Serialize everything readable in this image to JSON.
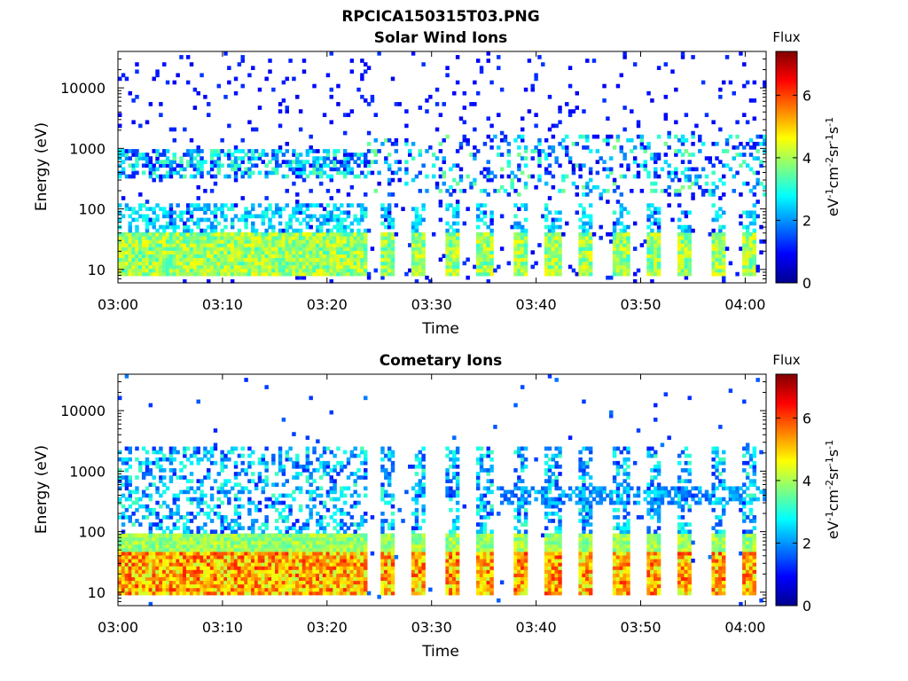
{
  "figure_title": "RPCICA150315T03.PNG",
  "chart_data": [
    {
      "type": "heatmap",
      "title": "Solar Wind Ions",
      "xlabel": "Time",
      "ylabel": "Energy (eV)",
      "x_ticks": [
        "03:00",
        "03:10",
        "03:20",
        "03:30",
        "03:40",
        "03:50",
        "04:00"
      ],
      "x_range_minutes": [
        0,
        62
      ],
      "y_scale": "log",
      "y_ticks": [
        "10",
        "100",
        "1000",
        "10000"
      ],
      "y_range": [
        6,
        40000
      ],
      "colorbar": {
        "label": "eV⁻¹cm⁻²sr⁻¹s⁻¹",
        "header": "Flux",
        "ticks": [
          "0",
          "2",
          "4",
          "6"
        ],
        "range": [
          0,
          7.4
        ]
      },
      "description_of_structure": "Dense low-energy (10-40 eV) flux blocks 03:00-03:23; intermittent columns after 03:25; scattered blue speckles up to ~40 keV"
    },
    {
      "type": "heatmap",
      "title": "Cometary Ions",
      "xlabel": "Time",
      "ylabel": "Energy (eV)",
      "x_ticks": [
        "03:00",
        "03:10",
        "03:20",
        "03:30",
        "03:40",
        "03:50",
        "04:00"
      ],
      "x_range_minutes": [
        0,
        62
      ],
      "y_scale": "log",
      "y_ticks": [
        "10",
        "100",
        "1000",
        "10000"
      ],
      "y_range": [
        6,
        40000
      ],
      "colorbar": {
        "label": "eV⁻¹cm⁻²sr⁻¹s⁻¹",
        "header": "Flux",
        "ticks": [
          "0",
          "2",
          "4",
          "6"
        ],
        "range": [
          0,
          7.4
        ]
      },
      "description_of_structure": "Strong (red/orange) flux at 10-50 eV throughout; periodic columns after 03:25 extending to ~1-3 keV"
    }
  ]
}
